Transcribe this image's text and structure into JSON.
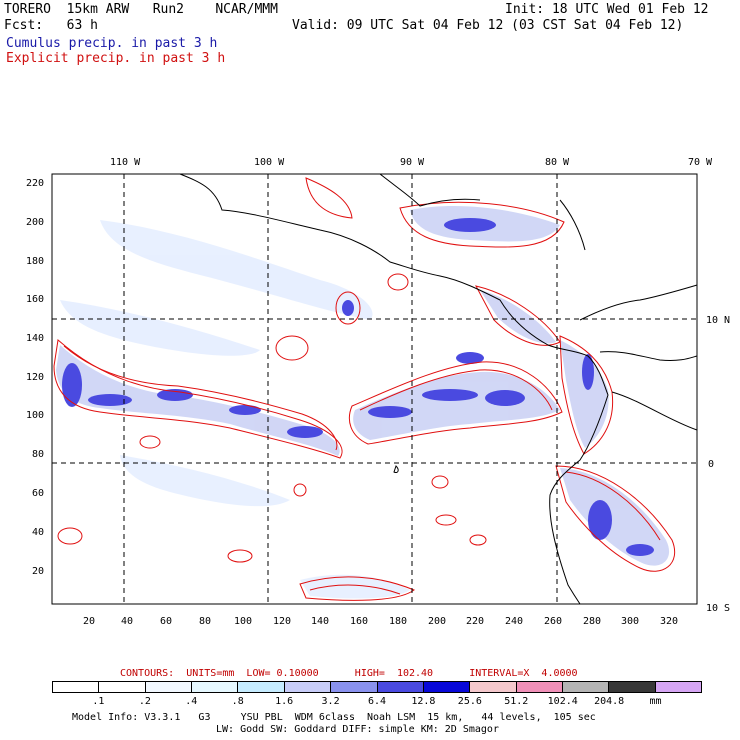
{
  "header": {
    "model": "TORERO  15km ARW   Run2    NCAR/MMM",
    "init": "Init: 18 UTC Wed 01 Feb 12",
    "fcst": "Fcst:   63 h",
    "valid": "Valid: 09 UTC Sat 04 Feb 12 (03 CST Sat 04 Feb 12)",
    "cumulus": "Cumulus precip. in past 3 h",
    "explicit": "Explicit precip. in past 3 h"
  },
  "top_axis": [
    "110 W",
    "100 W",
    "90 W",
    "80 W",
    "70 W"
  ],
  "left_axis": [
    "220",
    "200",
    "180",
    "160",
    "140",
    "120",
    "100",
    "80",
    "60",
    "40",
    "20"
  ],
  "right_axis": [
    "10 N",
    "0",
    "10 S"
  ],
  "bottom_axis": [
    "20",
    "40",
    "60",
    "80",
    "100",
    "120",
    "140",
    "160",
    "180",
    "200",
    "220",
    "240",
    "260",
    "280",
    "300",
    "320"
  ],
  "contours": "CONTOURS:  UNITS=mm  LOW= 0.10000      HIGH=  102.40      INTERVAL=X  4.0000",
  "colorbar": {
    "labels": [
      ".1",
      ".2",
      ".4",
      ".8",
      "1.6",
      "3.2",
      "6.4",
      "12.8",
      "25.6",
      "51.2",
      "102.4",
      "204.8",
      "mm"
    ],
    "colors": [
      "#ffffff",
      "#ffffff",
      "#f2f8ff",
      "#e6f8ff",
      "#c6ecff",
      "#c8cdf8",
      "#8a92ee",
      "#4a4ae0",
      "#0808d8",
      "#f4c8cc",
      "#f090b8",
      "#b4b4b4",
      "#383838",
      "#d6a6f4"
    ]
  },
  "footer": {
    "line1": "Model Info: V3.3.1   G3     YSU PBL  WDM 6class  Noah LSM  15 km,   44 levels,  105 sec",
    "line2": "LW: Godd SW: Goddard DIFF: simple KM: 2D Smagor"
  }
}
